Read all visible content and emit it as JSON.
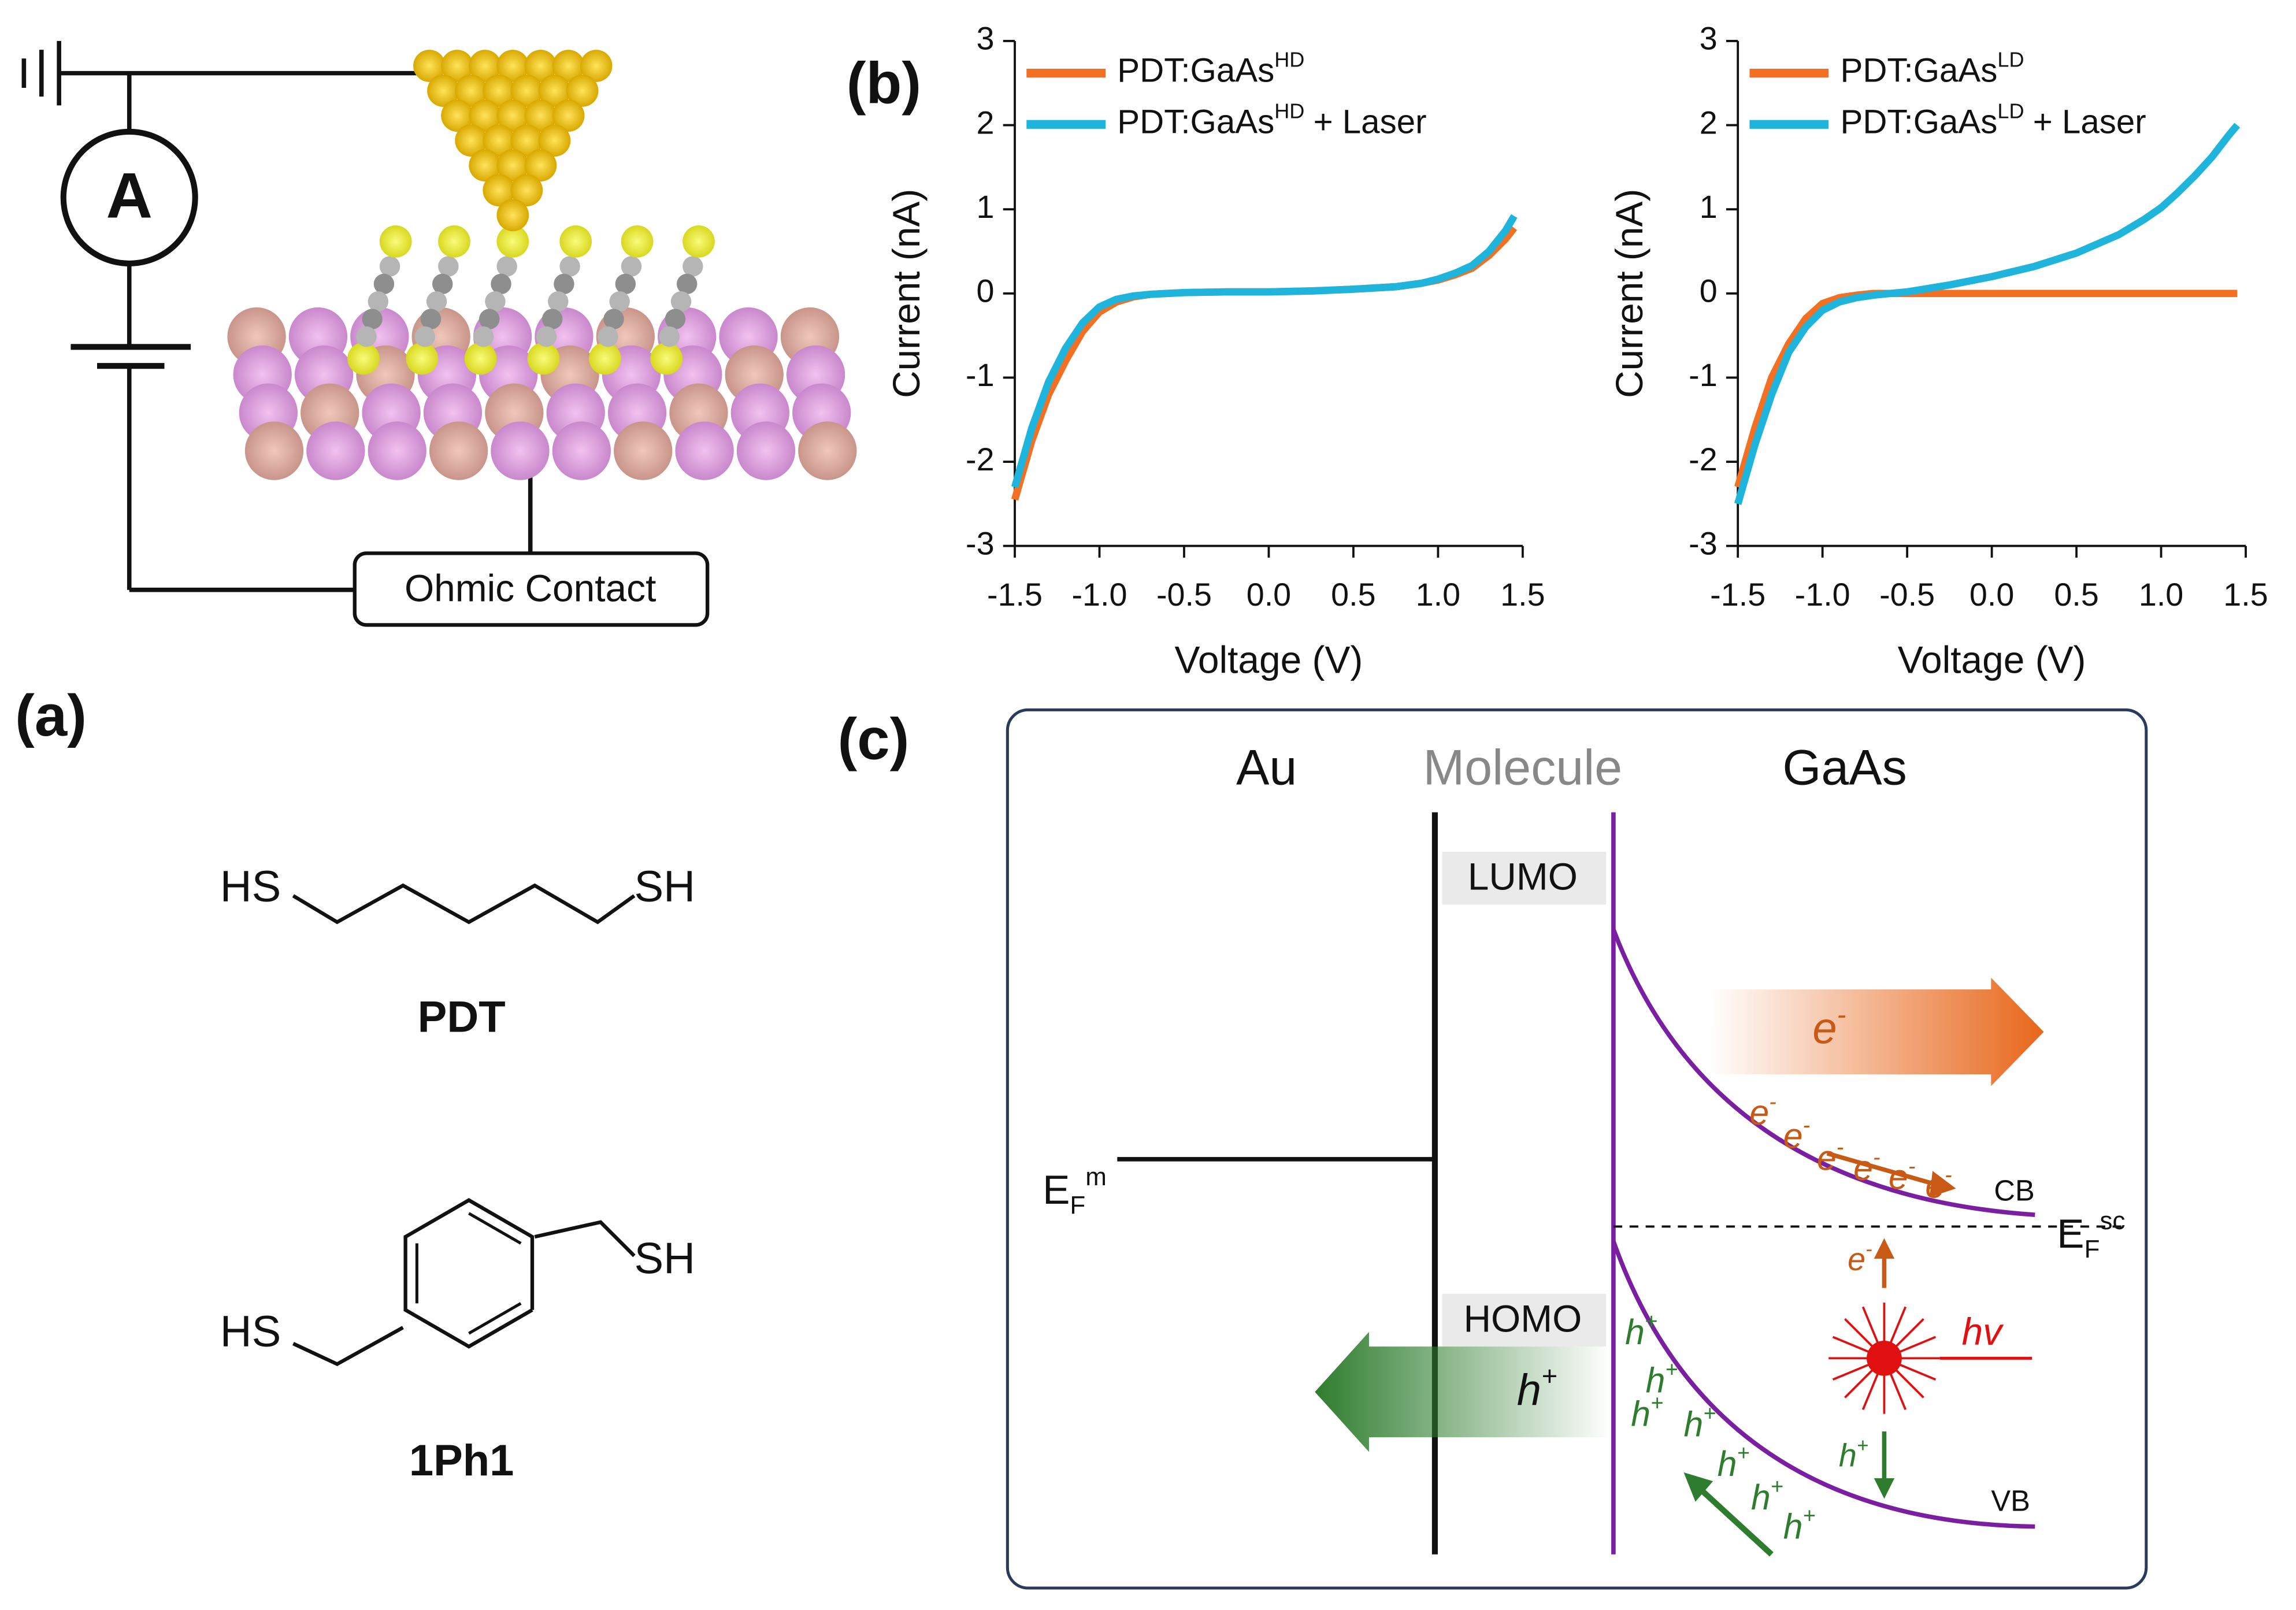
{
  "figure": {
    "panel_a": "(a)",
    "panel_b": "(b)",
    "panel_c": "(c)"
  },
  "circuit": {
    "ammeter": "A",
    "contact": "Ohmic Contact"
  },
  "molecules": [
    {
      "left": "HS",
      "right": "SH",
      "name": "PDT"
    },
    {
      "left": "HS",
      "right": "SH",
      "name": "1Ph1"
    }
  ],
  "band_diagram": {
    "au": "Au",
    "molecule": "Molecule",
    "gaas": "GaAs",
    "lumo": "LUMO",
    "homo": "HOMO",
    "cb": "CB",
    "vb": "VB",
    "photon": "hv",
    "fermi_metal": {
      "base": "E",
      "sub": "F",
      "sup": "m"
    },
    "fermi_sc": {
      "base": "E",
      "sub": "F",
      "sup": "sc"
    },
    "electron": {
      "base": "e",
      "sup": "-"
    },
    "hole": {
      "base": "h",
      "sup": "+"
    }
  },
  "chart_data": [
    {
      "type": "line",
      "x_label": "Voltage (V)",
      "y_label": "Current (nA)",
      "x": [
        -1.5,
        -1.4,
        -1.3,
        -1.2,
        -1.1,
        -1.0,
        -0.9,
        -0.8,
        -0.7,
        -0.6,
        -0.5,
        -0.25,
        0,
        0.25,
        0.5,
        0.75,
        0.9,
        1.0,
        1.1,
        1.2,
        1.3,
        1.4,
        1.45
      ],
      "xlim": [
        -1.5,
        1.5
      ],
      "ylim": [
        -3,
        3
      ],
      "xticks": [
        -1.5,
        {
          "value": -1,
          "label": "-1.0"
        },
        -0.5,
        {
          "value": 0,
          "label": "0.0"
        },
        0.5,
        {
          "value": 1,
          "label": "1.0"
        },
        1.5
      ],
      "yticks": [
        -3,
        -2,
        -1,
        0,
        1,
        2,
        3
      ],
      "series": [
        {
          "name": "PDT:GaAs",
          "name_sup": "HD",
          "color": "#f36f21",
          "values": [
            -2.45,
            -1.75,
            -1.2,
            -0.8,
            -0.45,
            -0.22,
            -0.1,
            -0.04,
            -0.01,
            0,
            0.01,
            0.02,
            0.02,
            0.03,
            0.05,
            0.08,
            0.12,
            0.16,
            0.22,
            0.3,
            0.45,
            0.65,
            0.78
          ]
        },
        {
          "name": "PDT:GaAs",
          "name_sup": "HD",
          "name_suffix": "+ Laser",
          "color": "#1eb4dc",
          "values": [
            -2.3,
            -1.6,
            -1.05,
            -0.65,
            -0.35,
            -0.16,
            -0.07,
            -0.03,
            -0.01,
            0,
            0.01,
            0.02,
            0.02,
            0.03,
            0.05,
            0.08,
            0.12,
            0.17,
            0.24,
            0.33,
            0.5,
            0.75,
            0.92
          ]
        }
      ]
    },
    {
      "type": "line",
      "x_label": "Voltage (V)",
      "y_label": "Current (nA)",
      "x": [
        -1.5,
        -1.4,
        -1.3,
        -1.2,
        -1.1,
        -1.0,
        -0.9,
        -0.8,
        -0.7,
        -0.6,
        -0.5,
        -0.25,
        0,
        0.25,
        0.5,
        0.75,
        0.9,
        1.0,
        1.1,
        1.2,
        1.3,
        1.4,
        1.45
      ],
      "xlim": [
        -1.5,
        1.5
      ],
      "ylim": [
        -3,
        3
      ],
      "xticks": [
        -1.5,
        {
          "value": -1,
          "label": "-1.0"
        },
        -0.5,
        {
          "value": 0,
          "label": "0.0"
        },
        0.5,
        {
          "value": 1,
          "label": "1.0"
        },
        1.5
      ],
      "yticks": [
        -3,
        -2,
        -1,
        0,
        1,
        2,
        3
      ],
      "series": [
        {
          "name": "PDT:GaAs",
          "name_sup": "LD",
          "color": "#f36f21",
          "values": [
            -2.3,
            -1.6,
            -1.0,
            -0.6,
            -0.3,
            -0.12,
            -0.05,
            -0.02,
            0,
            0,
            0,
            0,
            0,
            0,
            0,
            0,
            0,
            0,
            0,
            0,
            0,
            0,
            0
          ]
        },
        {
          "name": "PDT:GaAs",
          "name_sup": "LD",
          "name_suffix": "+ Laser",
          "color": "#1eb4dc",
          "values": [
            -2.5,
            -1.8,
            -1.2,
            -0.7,
            -0.4,
            -0.2,
            -0.1,
            -0.05,
            -0.02,
            0,
            0.02,
            0.1,
            0.2,
            0.32,
            0.48,
            0.7,
            0.88,
            1.02,
            1.2,
            1.4,
            1.62,
            1.88,
            2.0
          ]
        }
      ]
    }
  ]
}
